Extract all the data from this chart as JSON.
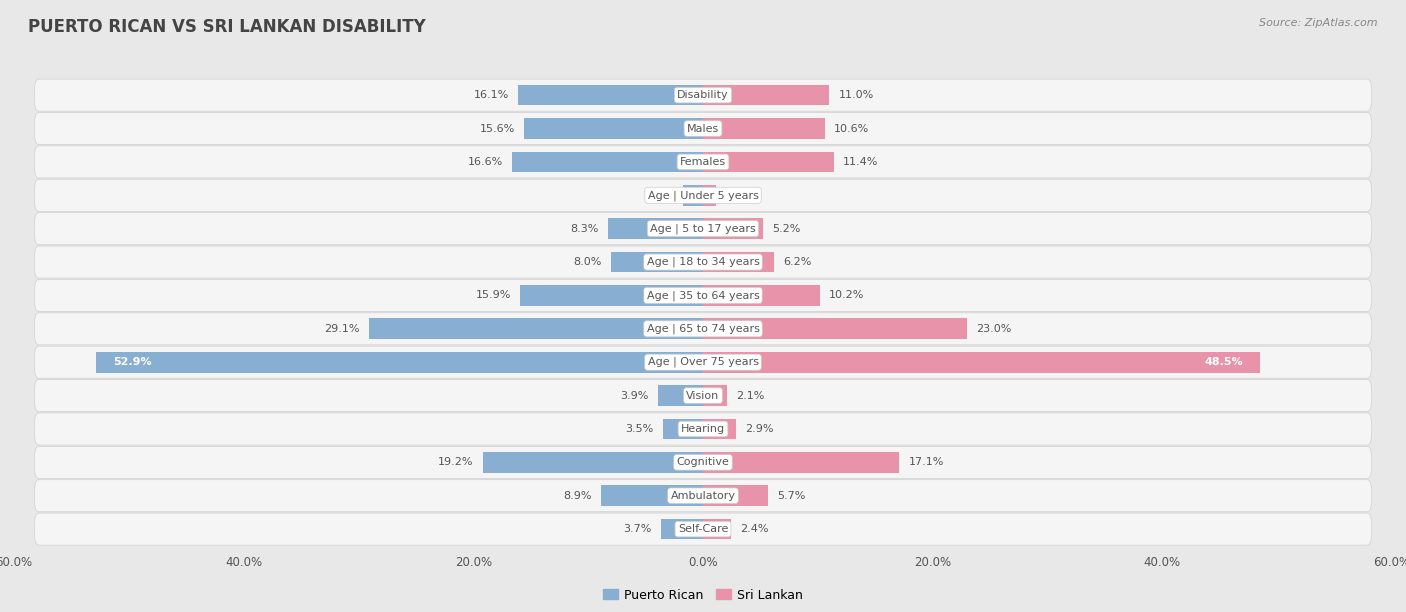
{
  "title": "PUERTO RICAN VS SRI LANKAN DISABILITY",
  "source": "Source: ZipAtlas.com",
  "categories": [
    "Disability",
    "Males",
    "Females",
    "Age | Under 5 years",
    "Age | 5 to 17 years",
    "Age | 18 to 34 years",
    "Age | 35 to 64 years",
    "Age | 65 to 74 years",
    "Age | Over 75 years",
    "Vision",
    "Hearing",
    "Cognitive",
    "Ambulatory",
    "Self-Care"
  ],
  "puerto_rican": [
    16.1,
    15.6,
    16.6,
    1.7,
    8.3,
    8.0,
    15.9,
    29.1,
    52.9,
    3.9,
    3.5,
    19.2,
    8.9,
    3.7
  ],
  "sri_lankan": [
    11.0,
    10.6,
    11.4,
    1.1,
    5.2,
    6.2,
    10.2,
    23.0,
    48.5,
    2.1,
    2.9,
    17.1,
    5.7,
    2.4
  ],
  "axis_max": 60.0,
  "bar_height": 0.62,
  "blue_color": "#88afd2",
  "pink_color": "#e893aa",
  "bg_color": "#e8e8e8",
  "row_bg": "#f5f5f5",
  "row_border": "#d0d0d0",
  "label_color": "#555555",
  "title_color": "#444444",
  "white_text_threshold": 45.0,
  "legend_blue": "Puerto Rican",
  "legend_pink": "Sri Lankan"
}
